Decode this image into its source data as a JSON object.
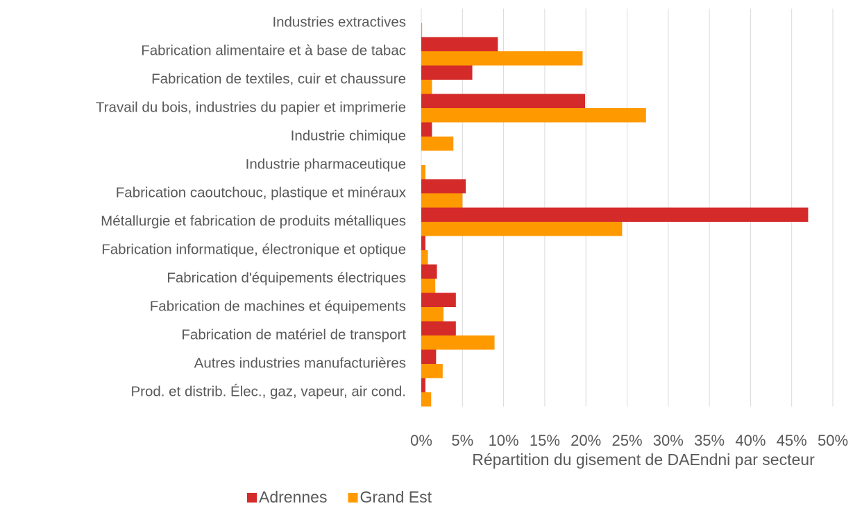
{
  "chart_data": {
    "type": "barh",
    "xlabel": "Répartition du gisement de DAEndni par secteur",
    "categories": [
      "Industries extractives",
      "Fabrication alimentaire et à base de tabac",
      "Fabrication de textiles, cuir et chaussure",
      "Travail du bois, industries du papier et imprimerie",
      "Industrie chimique",
      "Industrie pharmaceutique",
      "Fabrication caoutchouc, plastique et minéraux",
      "Métallurgie et fabrication de produits métalliques",
      "Fabrication informatique, électronique et optique",
      "Fabrication d'équipements électriques",
      "Fabrication de machines et équipements",
      "Fabrication de matériel de transport",
      "Autres industries manufacturières",
      "Prod. et distrib. Élec., gaz, vapeur, air cond."
    ],
    "series": [
      {
        "name": "Adrennes",
        "color": "#d42a2a",
        "values": [
          0,
          9.3,
          6.2,
          19.9,
          1.3,
          0,
          5.4,
          47.0,
          0.5,
          1.9,
          4.2,
          4.2,
          1.8,
          0.5
        ]
      },
      {
        "name": "Grand Est",
        "color": "#ff9900",
        "values": [
          0.1,
          19.6,
          1.3,
          27.3,
          3.9,
          0.5,
          5.0,
          24.4,
          0.8,
          1.7,
          2.7,
          8.9,
          2.6,
          1.2
        ]
      }
    ],
    "xlim": [
      0,
      50
    ],
    "xticks": [
      {
        "value": 0,
        "label": "0%"
      },
      {
        "value": 5,
        "label": "5%"
      },
      {
        "value": 10,
        "label": "10%"
      },
      {
        "value": 15,
        "label": "15%"
      },
      {
        "value": 20,
        "label": "20%"
      },
      {
        "value": 25,
        "label": "25%"
      },
      {
        "value": 30,
        "label": "30%"
      },
      {
        "value": 35,
        "label": "35%"
      },
      {
        "value": 40,
        "label": "40%"
      },
      {
        "value": 45,
        "label": "45%"
      },
      {
        "value": 50,
        "label": "50%"
      }
    ],
    "grid": true,
    "legend": "bottom"
  }
}
